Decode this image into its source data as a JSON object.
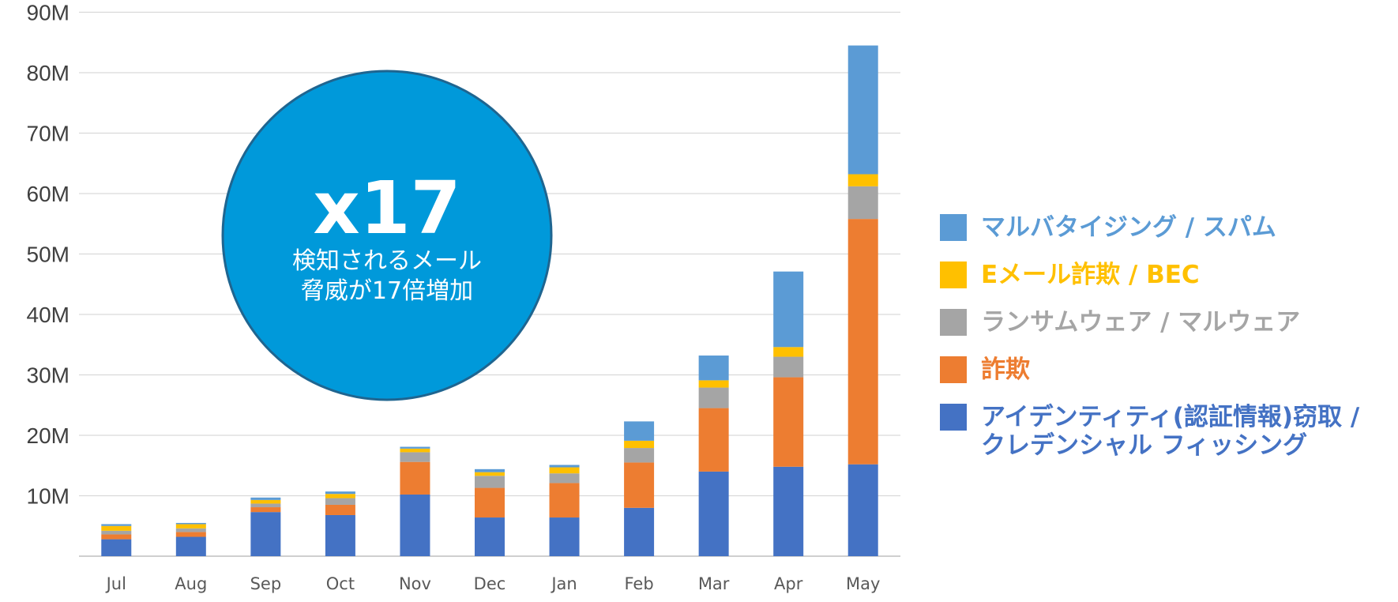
{
  "chart_data": {
    "type": "bar",
    "stacked": true,
    "categories": [
      "Jul",
      "Aug",
      "Sep",
      "Oct",
      "Nov",
      "Dec",
      "Jan",
      "Feb",
      "Mar",
      "Apr",
      "May"
    ],
    "y_ticks": [
      "10M",
      "20M",
      "30M",
      "40M",
      "50M",
      "60M",
      "70M",
      "80M",
      "90M"
    ],
    "ylim": [
      0,
      90
    ],
    "grid": true,
    "legend_position": "right",
    "series": [
      {
        "name": "アイデンティティ(認証情報)窃取 / クレデンシャル フィッシング",
        "color": "#4472c4",
        "values": [
          2.8,
          3.2,
          7.3,
          6.8,
          10.2,
          6.4,
          6.4,
          8.0,
          14.0,
          14.8,
          15.2
        ]
      },
      {
        "name": "詐欺",
        "color": "#ed7d31",
        "values": [
          0.8,
          0.8,
          0.8,
          1.7,
          5.4,
          4.9,
          5.7,
          7.5,
          10.5,
          14.8,
          40.6
        ]
      },
      {
        "name": "ランサムウェア / マルウェア",
        "color": "#a5a5a5",
        "values": [
          0.6,
          0.6,
          0.6,
          1.1,
          1.6,
          2.0,
          1.6,
          2.4,
          3.4,
          3.4,
          5.4
        ]
      },
      {
        "name": "Eメール詐欺 / BEC",
        "color": "#ffc000",
        "values": [
          0.8,
          0.7,
          0.6,
          0.7,
          0.6,
          0.6,
          1.0,
          1.2,
          1.2,
          1.6,
          2.0
        ]
      },
      {
        "name": "マルバタイジング / スパム",
        "color": "#5b9bd5",
        "values": [
          0.3,
          0.2,
          0.4,
          0.4,
          0.3,
          0.5,
          0.4,
          3.2,
          4.1,
          12.5,
          21.3
        ]
      }
    ],
    "callout": {
      "value": "x17",
      "line1": "検知されるメール",
      "line2": "脅威が17倍増加",
      "color": "#0099da"
    }
  }
}
